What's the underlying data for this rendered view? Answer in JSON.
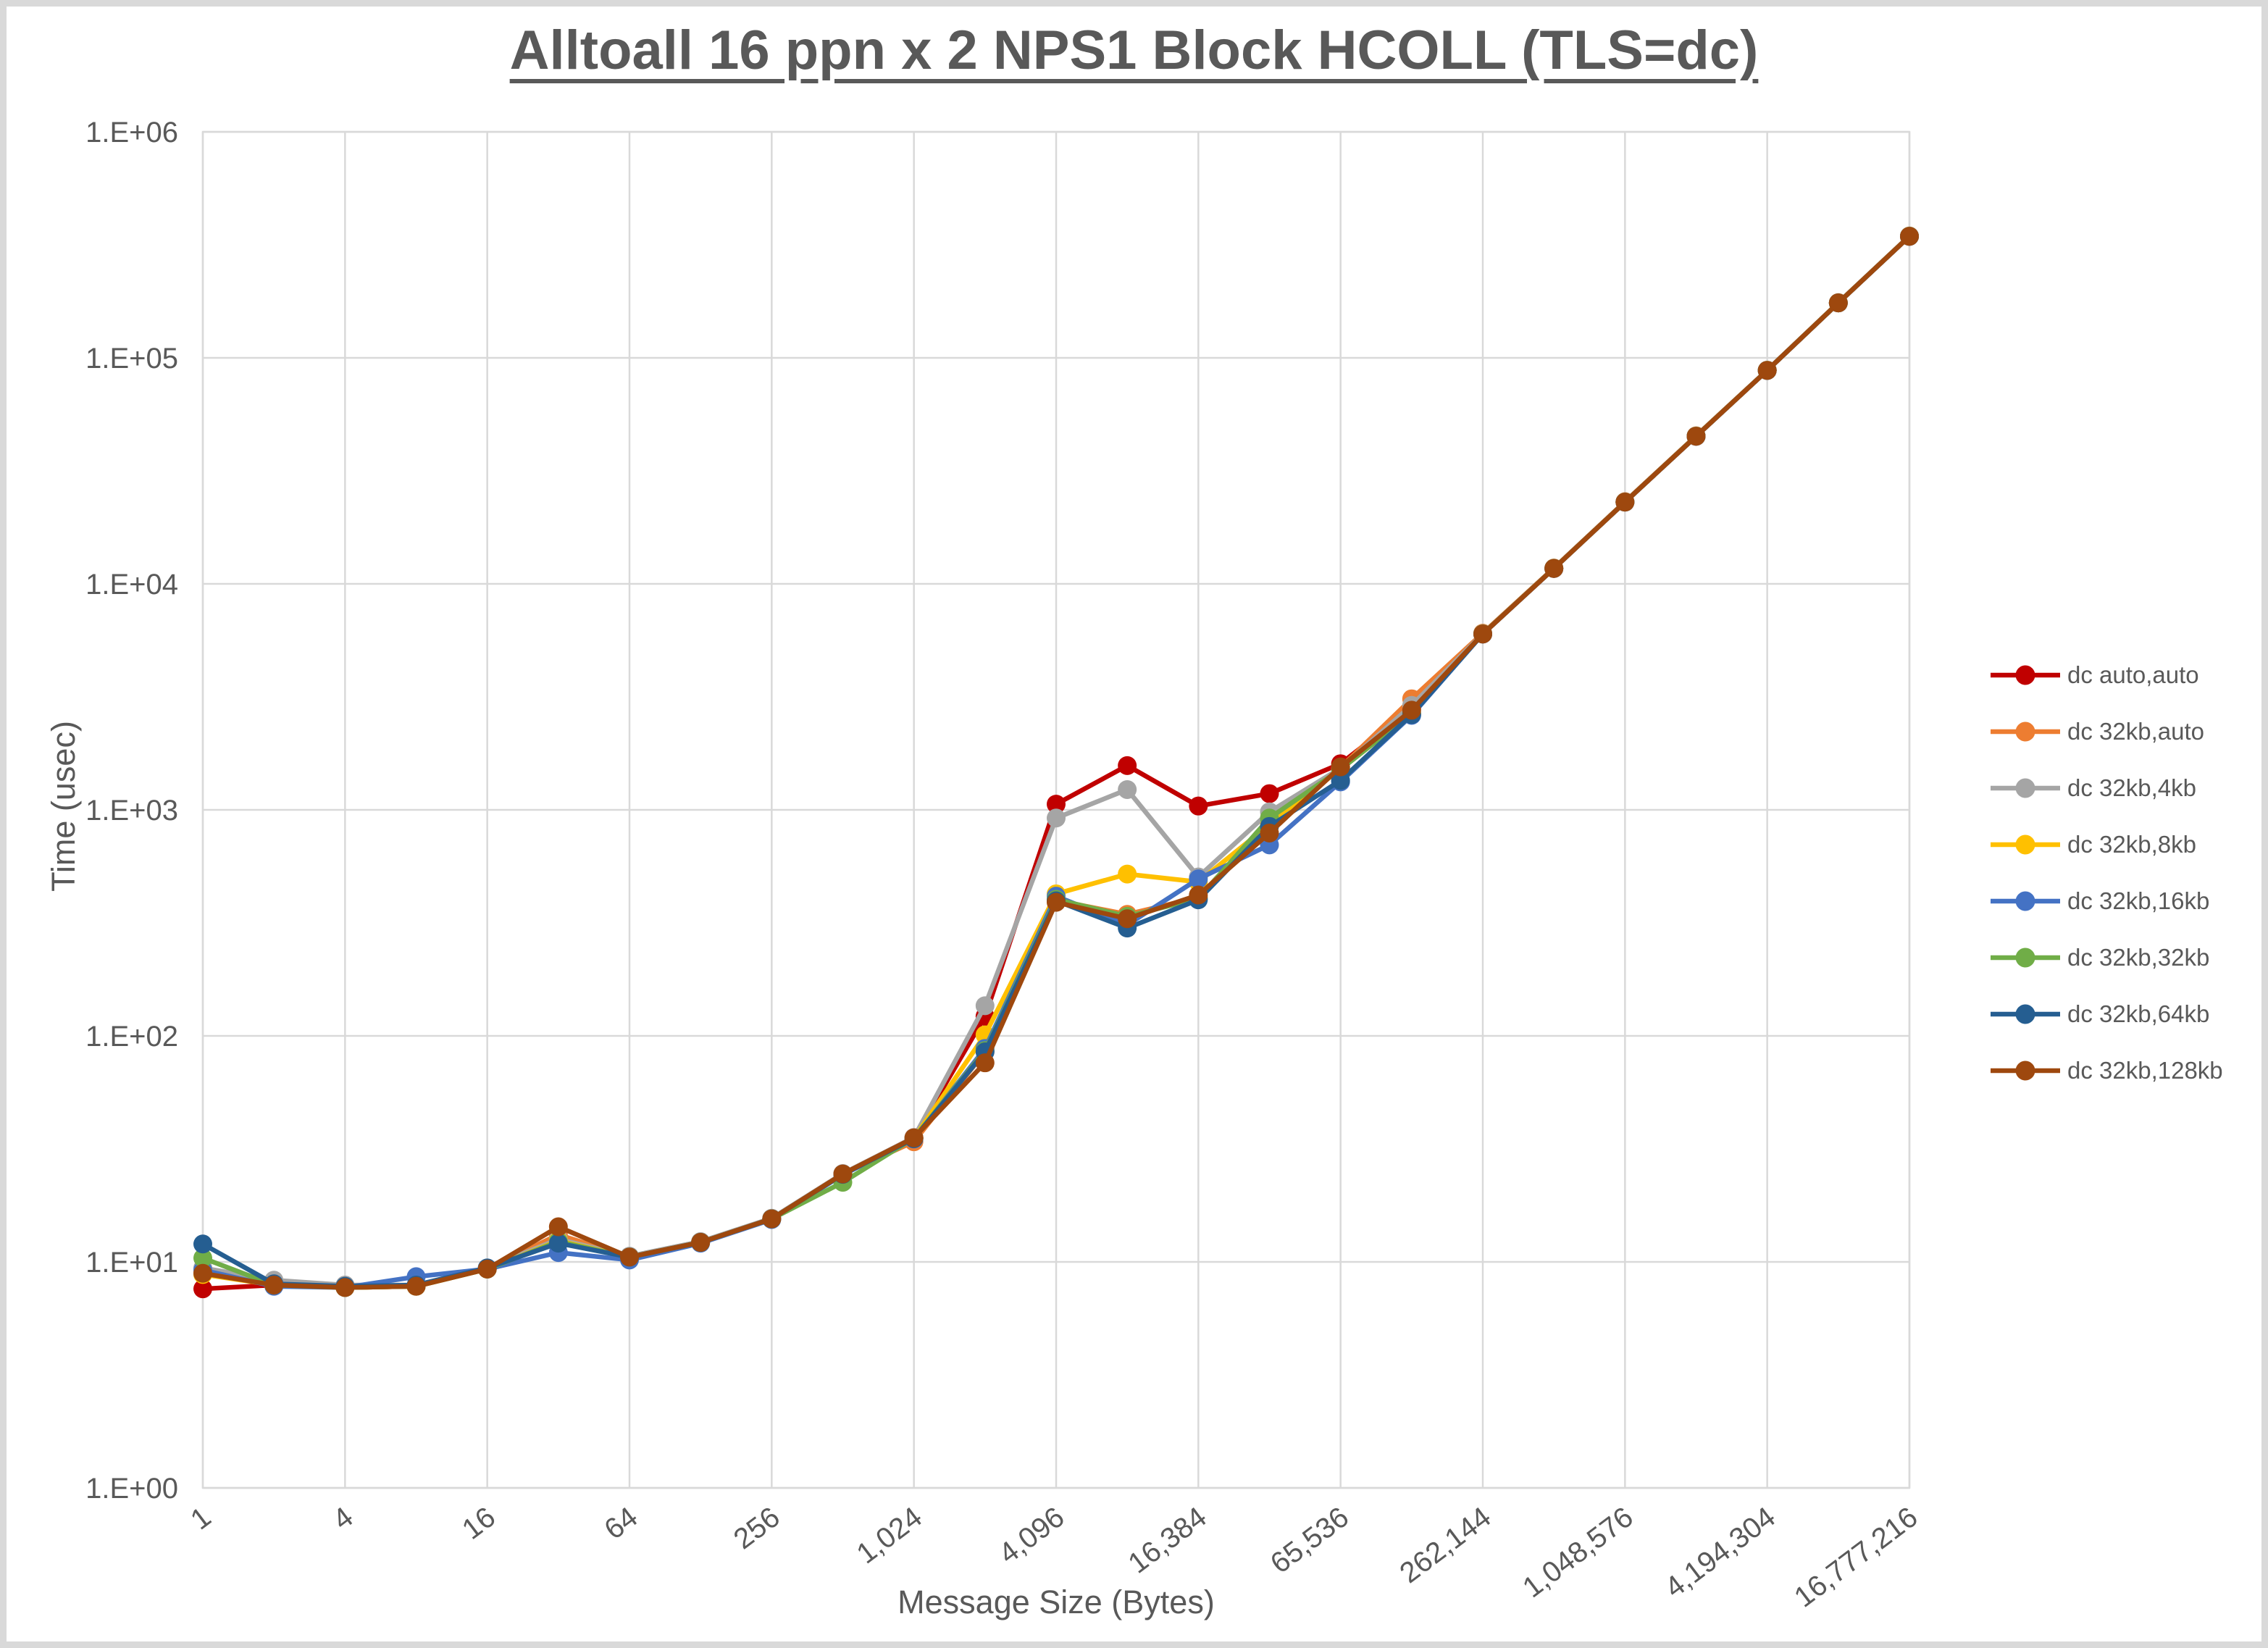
{
  "frame": {
    "border_color": "#D9D9D9",
    "background": "#FFFFFF"
  },
  "styles": {
    "text_color": "#595959",
    "grid_color": "#D9D9D9",
    "tick_font_px": 40,
    "line_width": 6.5,
    "marker_radius": 13
  },
  "chart_data": {
    "type": "line",
    "title": "Alltoall 16 ppn x 2 NPS1 Block HCOLL (TLS=dc)",
    "xlabel": "Message Size (Bytes)",
    "ylabel": "Time (usec)",
    "x_scale": "log2_categories",
    "y_scale": "log10",
    "ylim": [
      1,
      1000000
    ],
    "grid": true,
    "legend_position": "right",
    "marker": "circle",
    "y_tick_labels": [
      "1.E+00",
      "1.E+01",
      "1.E+02",
      "1.E+03",
      "1.E+04",
      "1.E+05",
      "1.E+06"
    ],
    "categories": [
      1,
      2,
      4,
      8,
      16,
      32,
      64,
      128,
      256,
      512,
      1024,
      2048,
      4096,
      8192,
      16384,
      32768,
      65536,
      131072,
      262144,
      524288,
      1048576,
      2097152,
      4194304,
      8388608,
      16777216
    ],
    "x_tick_labels": [
      "1",
      "4",
      "16",
      "64",
      "256",
      "1,024",
      "4,096",
      "16,384",
      "65,536",
      "262,144",
      "1,048,576",
      "4,194,304",
      "16,777,216"
    ],
    "series": [
      {
        "name": "dc auto,auto",
        "color": "#C00000",
        "values": [
          7.6,
          7.9,
          7.7,
          7.8,
          9.3,
          12.8,
          10.4,
          12.2,
          15.5,
          24.5,
          35.5,
          122,
          1060,
          1570,
          1040,
          1180,
          1600,
          2820,
          6000,
          11700,
          23000,
          45000,
          88000,
          175000,
          345000
        ]
      },
      {
        "name": "dc 32kb,auto",
        "color": "#ED7D31",
        "values": [
          9.0,
          7.9,
          7.7,
          7.8,
          9.3,
          13.2,
          10.5,
          12.2,
          15.5,
          24.5,
          34.0,
          85,
          398,
          345,
          410,
          890,
          1540,
          3100,
          6050,
          11750,
          23100,
          45200,
          88200,
          175500,
          346000
        ]
      },
      {
        "name": "dc 32kb,4kb",
        "color": "#A5A5A5",
        "values": [
          9.4,
          8.3,
          7.9,
          7.9,
          9.4,
          12.6,
          10.6,
          12.3,
          15.6,
          24.6,
          35.5,
          136,
          920,
          1230,
          505,
          980,
          1530,
          2900,
          6020,
          11720,
          23050,
          45100,
          88100,
          175200,
          345500
        ]
      },
      {
        "name": "dc 32kb,8kb",
        "color": "#FFC000",
        "values": [
          8.8,
          7.9,
          7.7,
          7.8,
          9.3,
          12.4,
          10.5,
          12.2,
          15.5,
          24.4,
          35.2,
          101,
          425,
          520,
          480,
          860,
          1520,
          2650,
          6010,
          11710,
          23020,
          45050,
          88050,
          175100,
          345200
        ]
      },
      {
        "name": "dc 32kb,16kb",
        "color": "#4472C4",
        "values": [
          9.2,
          7.8,
          7.7,
          8.6,
          9.3,
          11.0,
          10.2,
          12.1,
          15.4,
          24.3,
          35.0,
          88,
          415,
          310,
          495,
          700,
          1330,
          2620,
          6000,
          11700,
          23000,
          45000,
          88000,
          175000,
          345000
        ]
      },
      {
        "name": "dc 32kb,32kb",
        "color": "#70AD47",
        "values": [
          10.4,
          7.9,
          7.7,
          7.8,
          9.3,
          12.3,
          10.5,
          12.2,
          15.5,
          22.5,
          35.3,
          86,
          402,
          338,
          405,
          920,
          1510,
          2680,
          6005,
          11705,
          23010,
          45020,
          88020,
          175050,
          345100
        ]
      },
      {
        "name": "dc 32kb,64kb",
        "color": "#255E91",
        "values": [
          12.0,
          8.0,
          7.8,
          7.9,
          9.4,
          12.1,
          10.5,
          12.2,
          15.5,
          24.4,
          35.1,
          85,
          396,
          300,
          400,
          845,
          1350,
          2640,
          6000,
          11700,
          23000,
          45000,
          88000,
          175000,
          345000
        ]
      },
      {
        "name": "dc 32kb,128kb",
        "color": "#9E480E",
        "values": [
          8.9,
          7.9,
          7.7,
          7.8,
          9.3,
          14.3,
          10.5,
          12.2,
          15.5,
          24.5,
          35.4,
          76,
          390,
          330,
          420,
          790,
          1550,
          2760,
          6000,
          11700,
          23000,
          45000,
          88000,
          175000,
          345000
        ]
      }
    ]
  }
}
